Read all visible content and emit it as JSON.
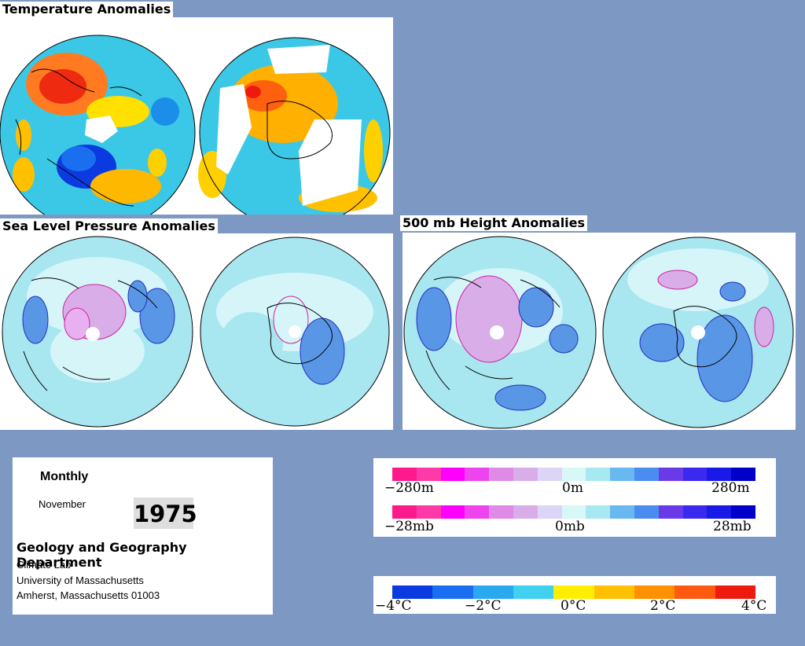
{
  "titles": {
    "temperature": "Temperature Anomalies",
    "slp": "Sea Level Pressure Anomalies",
    "height500": "500 mb Height Anomalies"
  },
  "info": {
    "period": "Monthly",
    "month": "November",
    "year": "1975",
    "department": "Geology and Geography Department",
    "lines": [
      "Climate Lab",
      "University of Massachusetts",
      "Amherst, Massachusetts 01003"
    ]
  },
  "colorbars": {
    "height": {
      "ticks": [
        "−280m",
        "0m",
        "280m"
      ],
      "colors": [
        "#ff1a8c",
        "#ff3aa8",
        "#ff00ff",
        "#ee44ee",
        "#e08ae8",
        "#d9aee8",
        "#dcd5f5",
        "#d8f8f8",
        "#a8e8f0",
        "#6ab8f0",
        "#4a8cf0",
        "#6a3ae8",
        "#3a2af0",
        "#1a1ae8",
        "#0000c8"
      ]
    },
    "pressure": {
      "ticks": [
        "−28mb",
        "0mb",
        "28mb"
      ],
      "colors": [
        "#ff1a8c",
        "#ff3aa8",
        "#ff00ff",
        "#ee44ee",
        "#e08ae8",
        "#d9aee8",
        "#dcd5f5",
        "#d8f8f8",
        "#a8e8f0",
        "#6ab8f0",
        "#4a8cf0",
        "#6a3ae8",
        "#3a2af0",
        "#1a1ae8",
        "#0000c8"
      ]
    },
    "temperature": {
      "ticks": [
        "−4°C",
        "−2°C",
        "0°C",
        "2°C",
        "4°C"
      ],
      "colors": [
        "#0a3ae0",
        "#1a6ef0",
        "#2aa8f0",
        "#40d0f0",
        "#ffee00",
        "#ffc000",
        "#ff9000",
        "#ff5a10",
        "#ee1a10"
      ]
    }
  },
  "colors": {
    "background": "#7d99c3",
    "ocean_temp": "#3ac8e6",
    "pressure_base": "#a8e6f0",
    "pressure_light": "#d5f5f8",
    "positive_blue": "#5a96e6",
    "negative_pink": "#d9aee8"
  }
}
